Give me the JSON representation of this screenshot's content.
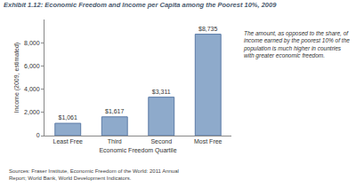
{
  "chart_data": {
    "type": "bar",
    "title": "Exhibit 1.12: Economic Freedom and Income per Capita among the Poorest 10%, 2009",
    "x_label": "Economic Freedom Quartile",
    "y_label": "Income (2009, estimated)",
    "categories": [
      "Least Free",
      "Third",
      "Second",
      "Most Free"
    ],
    "values": [
      1061,
      1617,
      3311,
      8735
    ],
    "value_labels": [
      "$1,061",
      "$1,617",
      "$3,311",
      "$8,735"
    ],
    "data_labels": true,
    "color": "#8eaacb",
    "ylim": [
      0,
      10000
    ],
    "yticks": [
      0,
      {
        "value": 2000,
        "label": "2,000"
      },
      {
        "value": 4000,
        "label": "4,000"
      },
      {
        "value": 6000,
        "label": "6,000"
      },
      {
        "value": 8000,
        "label": "8,000"
      }
    ],
    "grid": false,
    "annotations": [
      "The amount, as opposed to the share, of",
      "income earned by the poorest 10% of the",
      "population is much higher in countries",
      "with greater economic freedom."
    ],
    "source": [
      "Sources: Fraser Institute, Economic Freedom of the World: 2011 Annual",
      "Report; World Bank, World Development Indicators."
    ]
  }
}
